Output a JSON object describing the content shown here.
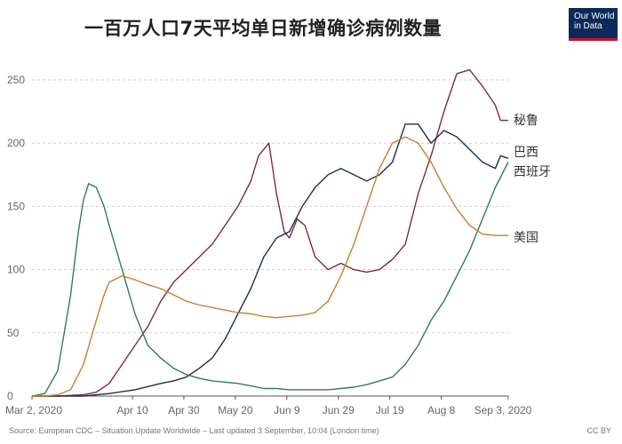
{
  "header": {
    "title": "一百万人口7天平均单日新增确诊病例数量",
    "logo_line1": "Our World",
    "logo_line2": "in Data"
  },
  "footer": {
    "source": "Source: European CDC – Situation Update Worldwide – Last updated 3 September, 10:04 (London time)",
    "license": "CC BY"
  },
  "chart_data": {
    "type": "line",
    "title": "一百万人口7天平均单日新增确诊病例数量",
    "xlabel": "",
    "ylabel": "",
    "ylim": [
      0,
      250
    ],
    "yticks": [
      0,
      50,
      100,
      150,
      200,
      250
    ],
    "xticks": [
      "Mar 2, 2020",
      "Apr 10",
      "Apr 30",
      "May 20",
      "Jun 9",
      "Jun 29",
      "Jul 19",
      "Aug 8",
      "Sep 3, 2020"
    ],
    "xtick_days": [
      0,
      39,
      59,
      79,
      99,
      119,
      139,
      159,
      185
    ],
    "grid": true,
    "x_unit": "days since Mar 2, 2020",
    "series": [
      {
        "name": "秘鲁",
        "color": "#7d2a45",
        "x": [
          0,
          10,
          20,
          25,
          30,
          35,
          40,
          45,
          50,
          55,
          60,
          65,
          70,
          75,
          80,
          85,
          88,
          92,
          95,
          98,
          100,
          103,
          106,
          110,
          115,
          120,
          125,
          130,
          135,
          140,
          145,
          150,
          155,
          160,
          165,
          170,
          175,
          180,
          182,
          185
        ],
        "y": [
          0,
          0,
          1,
          3,
          10,
          25,
          40,
          55,
          75,
          90,
          100,
          110,
          120,
          135,
          150,
          170,
          190,
          200,
          160,
          130,
          125,
          140,
          135,
          110,
          100,
          105,
          100,
          98,
          100,
          108,
          120,
          160,
          190,
          225,
          255,
          258,
          245,
          230,
          218,
          218
        ]
      },
      {
        "name": "巴西",
        "color": "#1f2f4a",
        "x": [
          0,
          20,
          30,
          40,
          50,
          55,
          60,
          65,
          70,
          75,
          80,
          85,
          90,
          95,
          100,
          105,
          110,
          115,
          120,
          125,
          130,
          135,
          140,
          145,
          150,
          155,
          160,
          165,
          170,
          175,
          180,
          182,
          185
        ],
        "y": [
          0,
          0,
          2,
          5,
          10,
          12,
          15,
          22,
          30,
          45,
          65,
          85,
          110,
          125,
          130,
          150,
          165,
          175,
          180,
          175,
          170,
          175,
          185,
          215,
          215,
          200,
          210,
          205,
          195,
          185,
          180,
          190,
          188
        ]
      },
      {
        "name": "西班牙",
        "color": "#2e7d5b",
        "x": [
          0,
          5,
          10,
          15,
          18,
          20,
          22,
          25,
          28,
          30,
          35,
          40,
          45,
          50,
          55,
          60,
          65,
          70,
          75,
          80,
          85,
          90,
          95,
          100,
          105,
          110,
          115,
          120,
          125,
          130,
          135,
          140,
          145,
          150,
          155,
          160,
          165,
          170,
          175,
          180,
          185
        ],
        "y": [
          0,
          2,
          20,
          80,
          130,
          155,
          168,
          165,
          150,
          135,
          100,
          65,
          40,
          30,
          22,
          17,
          14,
          12,
          11,
          10,
          8,
          6,
          6,
          5,
          5,
          5,
          5,
          6,
          7,
          9,
          12,
          15,
          25,
          40,
          60,
          75,
          95,
          115,
          140,
          165,
          185
        ]
      },
      {
        "name": "美国",
        "color": "#c7802f",
        "x": [
          0,
          5,
          10,
          15,
          20,
          25,
          28,
          30,
          35,
          40,
          45,
          50,
          55,
          60,
          65,
          70,
          75,
          80,
          85,
          90,
          95,
          100,
          105,
          110,
          115,
          120,
          125,
          130,
          135,
          140,
          145,
          150,
          155,
          160,
          165,
          170,
          175,
          180,
          185
        ],
        "y": [
          0,
          0,
          1,
          5,
          25,
          60,
          80,
          90,
          95,
          92,
          88,
          85,
          80,
          75,
          72,
          70,
          68,
          66,
          65,
          63,
          62,
          63,
          64,
          66,
          75,
          95,
          120,
          150,
          180,
          200,
          205,
          200,
          185,
          165,
          148,
          135,
          128,
          127,
          127
        ]
      }
    ]
  }
}
